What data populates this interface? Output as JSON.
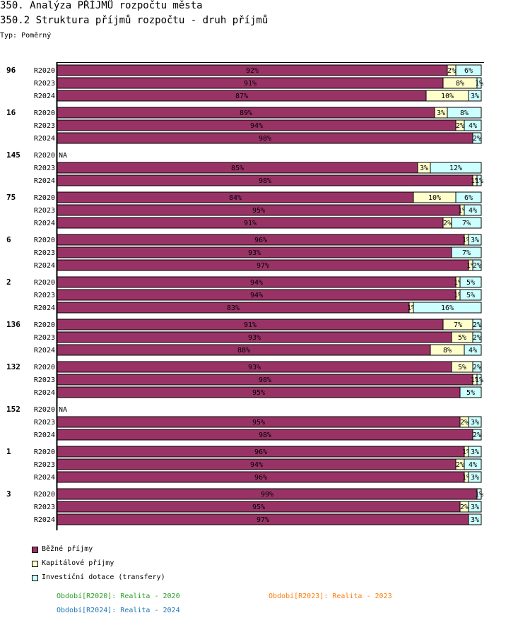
{
  "header": {
    "title": "350. Analýza PŘÍJMŮ rozpočtu města",
    "subtitle": "350.2 Struktura příjmů rozpočtu - druh příjmů",
    "type_label": "Typ: Poměrný"
  },
  "colors": {
    "bezne": "#993366",
    "kapitalove": "#FFFFCC",
    "investicni": "#CCFFFF",
    "period_R2020": "#2ca02c",
    "period_R2023": "#ff7f0e",
    "period_R2024": "#1f77b4"
  },
  "legend": [
    {
      "label": "Běžné příjmy",
      "color": "#993366"
    },
    {
      "label": "Kapitálové příjmy",
      "color": "#FFFFCC"
    },
    {
      "label": "Investiční dotace (transfery)",
      "color": "#CCFFFF"
    }
  ],
  "periods": [
    {
      "text": "Období[R2020]: Realita - 2020",
      "color": "#2ca02c"
    },
    {
      "text": "Období[R2023]: Realita - 2023",
      "color": "#ff7f0e"
    },
    {
      "text": "Období[R2024]: Realita - 2024",
      "color": "#1f77b4"
    }
  ],
  "chart_data": {
    "type": "bar",
    "orientation": "horizontal",
    "stacked": true,
    "normalized": true,
    "title": "350.2 Struktura příjmů rozpočtu - druh příjmů",
    "xlim": [
      0,
      100
    ],
    "series_names": [
      "Běžné příjmy",
      "Kapitálové příjmy",
      "Investiční dotace (transfery)"
    ],
    "na_label": "NA",
    "groups": [
      {
        "label": "96",
        "rows": [
          {
            "period": "R2020",
            "values": [
              92,
              2,
              6
            ]
          },
          {
            "period": "R2023",
            "values": [
              91,
              8,
              1
            ]
          },
          {
            "period": "R2024",
            "values": [
              87,
              10,
              3
            ]
          }
        ]
      },
      {
        "label": "16",
        "rows": [
          {
            "period": "R2020",
            "values": [
              89,
              3,
              8
            ]
          },
          {
            "period": "R2023",
            "values": [
              94,
              2,
              4
            ]
          },
          {
            "period": "R2024",
            "values": [
              98,
              0,
              2
            ]
          }
        ]
      },
      {
        "label": "145",
        "rows": [
          {
            "period": "R2020",
            "values": null
          },
          {
            "period": "R2023",
            "values": [
              85,
              3,
              12
            ]
          },
          {
            "period": "R2024",
            "values": [
              98,
              1,
              1
            ]
          }
        ]
      },
      {
        "label": "75",
        "rows": [
          {
            "period": "R2020",
            "values": [
              84,
              10,
              6
            ]
          },
          {
            "period": "R2023",
            "values": [
              95,
              1,
              4
            ]
          },
          {
            "period": "R2024",
            "values": [
              91,
              2,
              7
            ]
          }
        ]
      },
      {
        "label": "6",
        "rows": [
          {
            "period": "R2020",
            "values": [
              96,
              1,
              3
            ]
          },
          {
            "period": "R2023",
            "values": [
              93,
              0,
              7
            ]
          },
          {
            "period": "R2024",
            "values": [
              97,
              1,
              2
            ]
          }
        ]
      },
      {
        "label": "2",
        "rows": [
          {
            "period": "R2020",
            "values": [
              94,
              1,
              5
            ]
          },
          {
            "period": "R2023",
            "values": [
              94,
              1,
              5
            ]
          },
          {
            "period": "R2024",
            "values": [
              83,
              1,
              16
            ]
          }
        ]
      },
      {
        "label": "136",
        "rows": [
          {
            "period": "R2020",
            "values": [
              91,
              7,
              2
            ]
          },
          {
            "period": "R2023",
            "values": [
              93,
              5,
              2
            ]
          },
          {
            "period": "R2024",
            "values": [
              88,
              8,
              4
            ]
          }
        ]
      },
      {
        "label": "132",
        "rows": [
          {
            "period": "R2020",
            "values": [
              93,
              5,
              2
            ]
          },
          {
            "period": "R2023",
            "values": [
              98,
              1,
              1
            ]
          },
          {
            "period": "R2024",
            "values": [
              95,
              0,
              5
            ]
          }
        ]
      },
      {
        "label": "152",
        "rows": [
          {
            "period": "R2020",
            "values": null
          },
          {
            "period": "R2023",
            "values": [
              95,
              2,
              3
            ]
          },
          {
            "period": "R2024",
            "values": [
              98,
              0,
              2
            ]
          }
        ]
      },
      {
        "label": "1",
        "rows": [
          {
            "period": "R2020",
            "values": [
              96,
              1,
              3
            ]
          },
          {
            "period": "R2023",
            "values": [
              94,
              2,
              4
            ]
          },
          {
            "period": "R2024",
            "values": [
              96,
              1,
              3
            ]
          }
        ]
      },
      {
        "label": "3",
        "rows": [
          {
            "period": "R2020",
            "values": [
              99,
              0,
              1
            ]
          },
          {
            "period": "R2023",
            "values": [
              95,
              2,
              3
            ]
          },
          {
            "period": "R2024",
            "values": [
              97,
              0,
              3
            ]
          }
        ]
      }
    ]
  }
}
